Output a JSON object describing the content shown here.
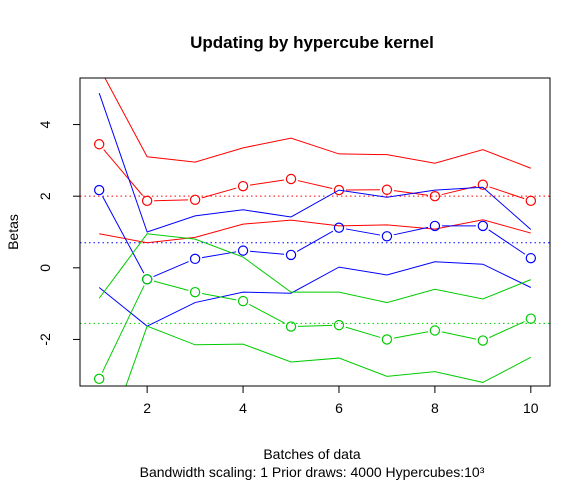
{
  "chart_data": {
    "type": "line",
    "title": "Updating by hypercube kernel",
    "xlabel": "Batches of data",
    "ylabel": "Betas",
    "subtitle": "Bandwidth scaling: 1  Prior draws: 4000  Hypercubes:10³",
    "xlim": [
      0.6,
      10.4
    ],
    "ylim": [
      -3.3,
      5.3
    ],
    "x_ticks": [
      2,
      4,
      6,
      8,
      10
    ],
    "y_ticks": [
      -2,
      0,
      2,
      4
    ],
    "grid": false,
    "reference_lines": [
      {
        "y": 2.0,
        "color": "#ff0000",
        "style": "dotted"
      },
      {
        "y": 0.7,
        "color": "#0000ff",
        "style": "dotted"
      },
      {
        "y": -1.55,
        "color": "#00cc00",
        "style": "dotted"
      }
    ],
    "x": [
      1,
      2,
      3,
      4,
      5,
      6,
      7,
      8,
      9,
      10
    ],
    "series": [
      {
        "color": "#ff0000",
        "estimates": [
          3.45,
          1.87,
          1.9,
          2.28,
          2.48,
          2.17,
          2.18,
          2.0,
          2.32,
          1.87
        ],
        "upper": [
          5.6,
          3.1,
          2.95,
          3.35,
          3.62,
          3.18,
          3.16,
          2.92,
          3.3,
          2.78
        ],
        "lower": [
          0.95,
          0.7,
          0.85,
          1.22,
          1.33,
          1.17,
          1.2,
          1.08,
          1.34,
          0.97
        ]
      },
      {
        "color": "#0000ff",
        "estimates": [
          2.17,
          -0.32,
          0.25,
          0.48,
          0.36,
          1.12,
          0.88,
          1.17,
          1.17,
          0.27
        ],
        "upper": [
          4.88,
          1.0,
          1.45,
          1.62,
          1.42,
          2.17,
          1.97,
          2.17,
          2.25,
          1.07
        ],
        "lower": [
          -0.55,
          -1.63,
          -0.97,
          -0.68,
          -0.71,
          0.02,
          -0.2,
          0.17,
          0.1,
          -0.55
        ]
      },
      {
        "color": "#00cc00",
        "estimates": [
          -3.1,
          -0.32,
          -0.68,
          -0.93,
          -1.64,
          -1.6,
          -2.0,
          -1.75,
          -2.03,
          -1.42
        ],
        "upper": [
          -0.85,
          0.95,
          0.8,
          0.3,
          -0.68,
          -0.68,
          -0.97,
          -0.6,
          -0.87,
          -0.33
        ],
        "lower": [
          -5.4,
          -1.63,
          -2.15,
          -2.13,
          -2.63,
          -2.52,
          -3.03,
          -2.9,
          -3.2,
          -2.5
        ]
      }
    ]
  }
}
